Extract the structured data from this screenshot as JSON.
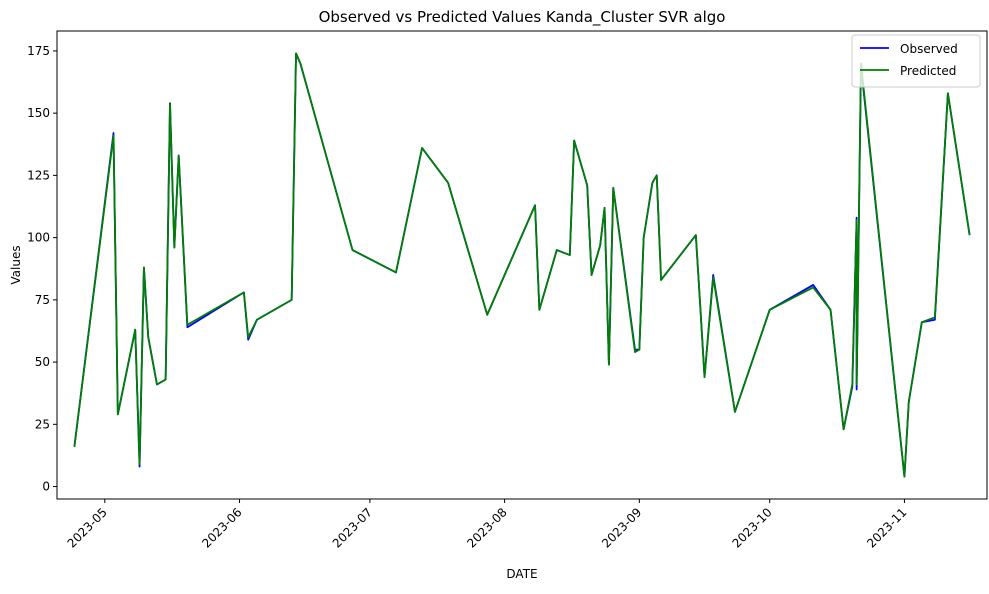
{
  "chart_data": {
    "type": "line",
    "title": "Observed vs Predicted Values Kanda_Cluster SVR algo",
    "xlabel": "DATE",
    "ylabel": "Values",
    "x_axis_type": "date",
    "xlim": [
      "2023-04-20",
      "2023-11-20"
    ],
    "ylim": [
      -5,
      183
    ],
    "yticks": [
      0,
      25,
      50,
      75,
      100,
      125,
      150,
      175
    ],
    "xticks": [
      "2023-05-01",
      "2023-06-01",
      "2023-07-01",
      "2023-08-01",
      "2023-09-01",
      "2023-10-01",
      "2023-11-01"
    ],
    "xtick_labels": [
      "2023-05",
      "2023-06",
      "2023-07",
      "2023-08",
      "2023-09",
      "2023-10",
      "2023-11"
    ],
    "grid": false,
    "legend_position": "top-right",
    "x": [
      "2023-04-24",
      "2023-05-03",
      "2023-05-04",
      "2023-05-08",
      "2023-05-09",
      "2023-05-10",
      "2023-05-11",
      "2023-05-13",
      "2023-05-15",
      "2023-05-16",
      "2023-05-17",
      "2023-05-18",
      "2023-05-20",
      "2023-06-02",
      "2023-06-03",
      "2023-06-05",
      "2023-06-13",
      "2023-06-14",
      "2023-06-15",
      "2023-06-27",
      "2023-07-07",
      "2023-07-13",
      "2023-07-19",
      "2023-07-28",
      "2023-08-08",
      "2023-08-09",
      "2023-08-13",
      "2023-08-16",
      "2023-08-17",
      "2023-08-20",
      "2023-08-21",
      "2023-08-23",
      "2023-08-24",
      "2023-08-25",
      "2023-08-26",
      "2023-08-31",
      "2023-09-01",
      "2023-09-02",
      "2023-09-04",
      "2023-09-05",
      "2023-09-06",
      "2023-09-14",
      "2023-09-15",
      "2023-09-16",
      "2023-09-18",
      "2023-09-23",
      "2023-10-01",
      "2023-10-11",
      "2023-10-15",
      "2023-10-18",
      "2023-10-20",
      "2023-10-21",
      "2023-10-21",
      "2023-10-22",
      "2023-11-01",
      "2023-11-02",
      "2023-11-05",
      "2023-11-08",
      "2023-11-11",
      "2023-11-16"
    ],
    "series": [
      {
        "name": "Observed",
        "color": "#0000ff",
        "values": [
          16,
          142,
          29,
          63,
          8,
          88,
          60,
          41,
          43,
          154,
          96,
          133,
          64,
          78,
          59,
          67,
          75,
          174,
          170,
          95,
          86,
          136,
          122,
          69,
          113,
          71,
          95,
          93,
          139,
          121,
          85,
          97,
          112,
          49,
          120,
          55,
          55,
          100,
          122,
          125,
          83,
          101,
          73,
          44,
          85,
          30,
          71,
          81,
          71,
          23,
          40,
          108,
          39,
          169,
          4,
          34,
          66,
          67,
          158,
          101
        ]
      },
      {
        "name": "Predicted",
        "color": "#007f00",
        "values": [
          16,
          141,
          29,
          63,
          9,
          88,
          60,
          41,
          43,
          154,
          96,
          133,
          65,
          78,
          60,
          67,
          75,
          174,
          170,
          95,
          86,
          136,
          122,
          69,
          113,
          71,
          95,
          93,
          139,
          121,
          85,
          97,
          112,
          49,
          120,
          54,
          55,
          100,
          122,
          125,
          83,
          101,
          73,
          44,
          84,
          30,
          71,
          80,
          71,
          23,
          41,
          107,
          41,
          170,
          4,
          34,
          66,
          68,
          158,
          101
        ]
      }
    ]
  }
}
